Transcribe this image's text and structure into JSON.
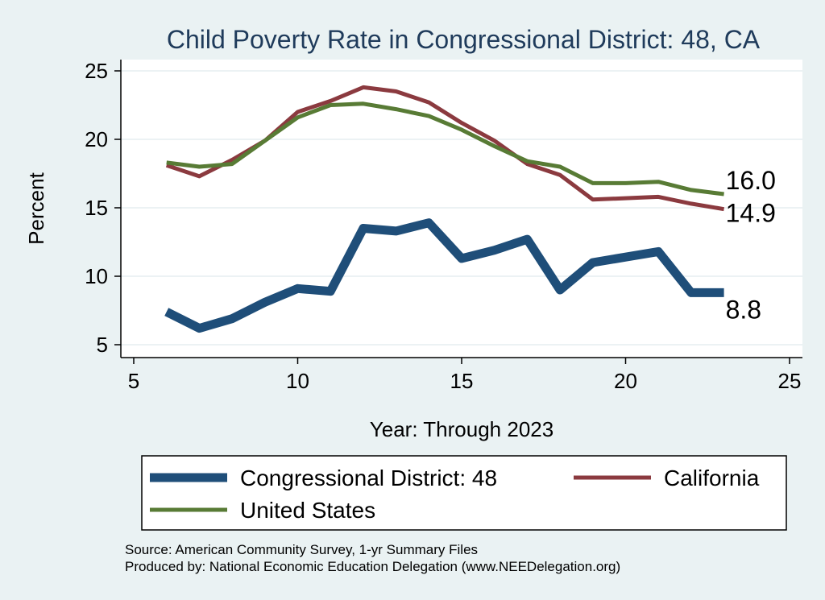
{
  "chart_data": {
    "type": "line",
    "title": "Child Poverty Rate in Congressional District:  48, CA",
    "xlabel": "Year: Through 2023",
    "ylabel": "Percent",
    "xlim": [
      5,
      25
    ],
    "ylim": [
      5,
      25
    ],
    "xticks": [
      "5",
      "10",
      "15",
      "20",
      "25"
    ],
    "yticks": [
      "5",
      "10",
      "15",
      "20",
      "25"
    ],
    "grid": true,
    "legend_position": "bottom",
    "series": [
      {
        "name": "Congressional District:  48",
        "color": "#1f4e79",
        "x": [
          6,
          7,
          8,
          9,
          10,
          11,
          12,
          13,
          14,
          15,
          16,
          17,
          18,
          19,
          20,
          21,
          22,
          23
        ],
        "values": [
          7.4,
          6.2,
          6.9,
          8.1,
          9.1,
          8.9,
          13.5,
          13.3,
          13.9,
          11.3,
          11.9,
          12.7,
          9.0,
          11.0,
          11.4,
          11.8,
          8.8,
          8.8
        ],
        "end_label": "8.8"
      },
      {
        "name": "California",
        "color": "#8b3a3f",
        "x": [
          6,
          7,
          8,
          9,
          10,
          11,
          12,
          13,
          14,
          15,
          16,
          17,
          18,
          19,
          20,
          21,
          22,
          23
        ],
        "values": [
          18.1,
          17.3,
          18.5,
          19.9,
          22.0,
          22.8,
          23.8,
          23.5,
          22.7,
          21.2,
          19.9,
          18.2,
          17.4,
          15.6,
          15.7,
          15.8,
          15.3,
          14.9
        ],
        "end_label": "14.9"
      },
      {
        "name": "United States",
        "color": "#587b35",
        "x": [
          6,
          7,
          8,
          9,
          10,
          11,
          12,
          13,
          14,
          15,
          16,
          17,
          18,
          19,
          20,
          21,
          22,
          23
        ],
        "values": [
          18.3,
          18.0,
          18.2,
          19.9,
          21.6,
          22.5,
          22.6,
          22.2,
          21.7,
          20.7,
          19.5,
          18.4,
          18.0,
          16.8,
          16.8,
          16.9,
          16.3,
          16.0
        ],
        "end_label": "16.0"
      }
    ],
    "source_lines": [
      "Source: American Community Survey, 1-yr Summary Files",
      "Produced by: National Economic Education Delegation (www.NEEDelegation.org)"
    ]
  }
}
